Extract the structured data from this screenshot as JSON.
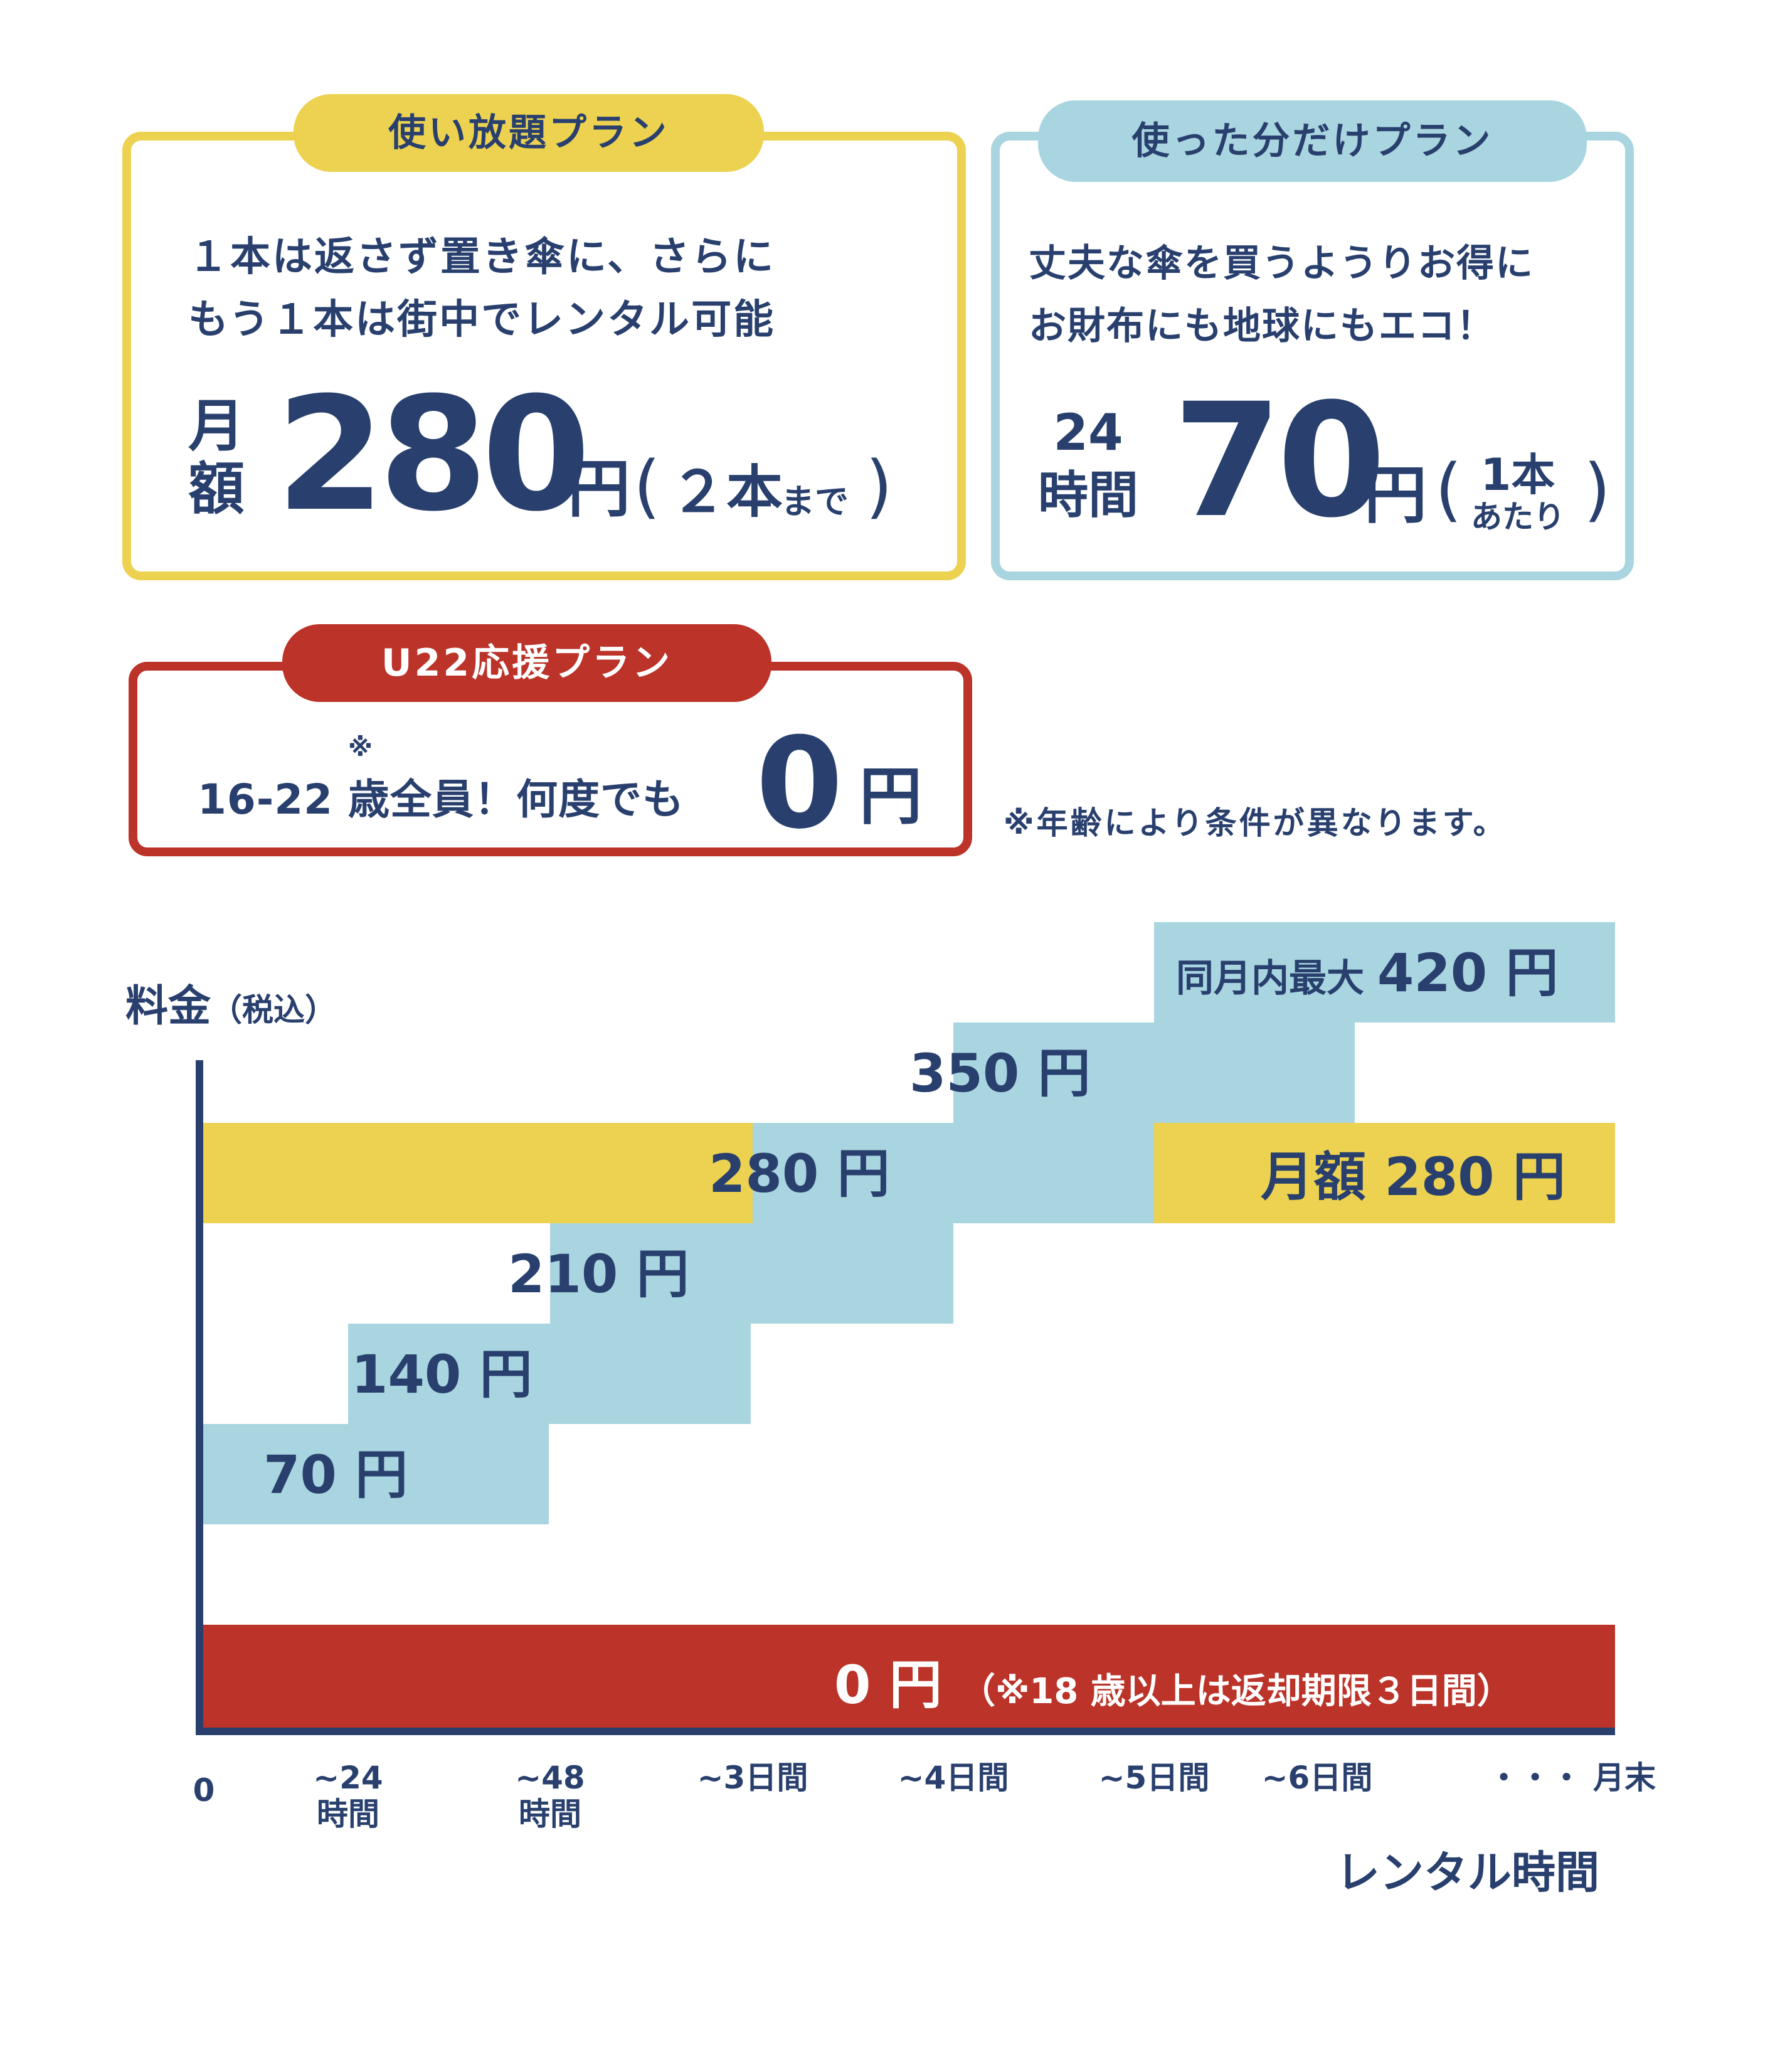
{
  "plans": {
    "unlimited": {
      "tab": "使い放題プラン",
      "desc": [
        "１本は返さず置き傘に、さらに",
        "もう１本は街中でレンタル可能"
      ],
      "price_prefix": [
        "月",
        "額"
      ],
      "price": "280",
      "yen": "円",
      "paren_open": "(",
      "note": "２本",
      "note_small": "まで",
      "paren_close": ")",
      "color": "#ecd250"
    },
    "payg": {
      "tab": "使った分だけプラン",
      "desc": [
        "丈夫な傘を買うようりお得に",
        "お財布にも地球にもエコ！"
      ],
      "price_prefix": [
        "24",
        "時間"
      ],
      "price": "70",
      "yen": "円",
      "paren_open": "(",
      "note_lines": [
        "1本",
        "あたり"
      ],
      "paren_close": ")",
      "color": "#a9d5e0"
    },
    "u22": {
      "tab": "U22応援プラン",
      "mark": "※",
      "text": "16-22 歳全員！何度でも",
      "price": "0",
      "yen": "円",
      "color": "#bb3329"
    },
    "footnote": "※年齢により条件が異なります。"
  },
  "chart_data": {
    "type": "bar",
    "ylabel": "料金",
    "ylabel_note": "（税込）",
    "xlabel": "レンタル時間",
    "x_ticks": [
      [
        "0"
      ],
      [
        "~24",
        "時間"
      ],
      [
        "~48",
        "時間"
      ],
      [
        "~3日間"
      ],
      [
        "~4日間"
      ],
      [
        "~5日間"
      ],
      [
        "~6日間"
      ],
      [
        "・・・ 月末"
      ]
    ],
    "series": [
      {
        "name": "使った分だけプラン",
        "color": "#a9d5e0",
        "steps": [
          {
            "from": "0",
            "to": "~24時間",
            "value": 70,
            "label": "70 円"
          },
          {
            "from": "~24時間",
            "to": "~48時間",
            "value": 140,
            "label": "140 円"
          },
          {
            "from": "~48時間",
            "to": "~3日間",
            "value": 210,
            "label": "210 円"
          },
          {
            "from": "~3日間",
            "to": "~4日間",
            "value": 280,
            "label": "280 円"
          },
          {
            "from": "~4日間",
            "to": "~5日間",
            "value": 350,
            "label": "350 円"
          },
          {
            "from": "~5日間",
            "to": "月末",
            "value": 420,
            "label": "同月内最大 420 円"
          }
        ]
      },
      {
        "name": "使い放題プラン",
        "color": "#ecd250",
        "value": 280,
        "label": "月額 280 円"
      },
      {
        "name": "U22応援プラン",
        "color": "#bb3329",
        "value": 0,
        "label": "0 円",
        "label_note": "（※18 歳以上は返却期限３日間）"
      }
    ]
  }
}
